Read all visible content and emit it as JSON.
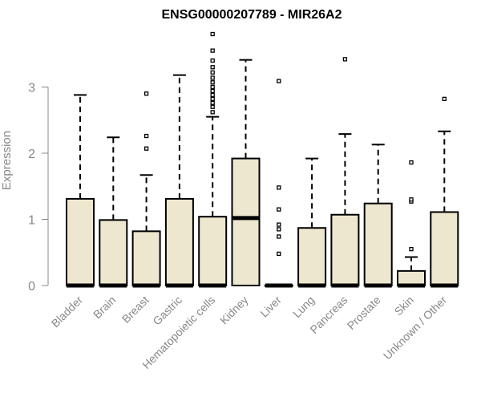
{
  "chart_data": {
    "type": "boxplot",
    "title": "ENSG00000207789 - MIR26A2",
    "ylabel": "Expression",
    "xlabel": "",
    "ylim": [
      0,
      3.9
    ],
    "yticks": [
      0,
      1,
      2,
      3
    ],
    "grid": false,
    "legend": "none",
    "colors": {
      "box_fill": "#ede7cf",
      "stroke": "#000000",
      "axis_text": "#888888"
    },
    "categories": [
      "Bladder",
      "Brain",
      "Breast",
      "Gastric",
      "Hematopoietic cells",
      "Kidney",
      "Liver",
      "Lung",
      "Pancreas",
      "Prostate",
      "Skin",
      "Unknown / Other"
    ],
    "boxes": [
      {
        "whisker_low": 0,
        "q1": 0,
        "median": 0,
        "q3": 1.31,
        "whisker_high": 2.88,
        "outliers": []
      },
      {
        "whisker_low": 0,
        "q1": 0,
        "median": 0,
        "q3": 0.99,
        "whisker_high": 2.24,
        "outliers": []
      },
      {
        "whisker_low": 0,
        "q1": 0,
        "median": 0,
        "q3": 0.82,
        "whisker_high": 1.67,
        "outliers": [
          2.07,
          2.26,
          2.9
        ]
      },
      {
        "whisker_low": 0,
        "q1": 0,
        "median": 0,
        "q3": 1.31,
        "whisker_high": 3.18,
        "outliers": []
      },
      {
        "whisker_low": 0,
        "q1": 0,
        "median": 0,
        "q3": 1.04,
        "whisker_high": 2.55,
        "outliers": [
          2.62,
          2.7,
          2.76,
          2.82,
          2.88,
          2.94,
          3.0,
          3.07,
          3.14,
          3.22,
          3.3,
          3.4,
          3.55,
          3.8
        ]
      },
      {
        "whisker_low": 0,
        "q1": 0,
        "median": 1.02,
        "q3": 1.92,
        "whisker_high": 3.41,
        "outliers": []
      },
      {
        "whisker_low": 0,
        "q1": 0,
        "median": 0,
        "q3": 0,
        "whisker_high": 0,
        "outliers": [
          0.48,
          0.74,
          0.85,
          0.92,
          1.15,
          1.48,
          3.09
        ]
      },
      {
        "whisker_low": 0,
        "q1": 0,
        "median": 0,
        "q3": 0.87,
        "whisker_high": 1.92,
        "outliers": []
      },
      {
        "whisker_low": 0,
        "q1": 0,
        "median": 0,
        "q3": 1.07,
        "whisker_high": 2.29,
        "outliers": [
          3.42
        ]
      },
      {
        "whisker_low": 0,
        "q1": 0,
        "median": 0,
        "q3": 1.24,
        "whisker_high": 2.13,
        "outliers": []
      },
      {
        "whisker_low": 0,
        "q1": 0,
        "median": 0,
        "q3": 0.22,
        "whisker_high": 0.43,
        "outliers": [
          0.55,
          1.27,
          1.3,
          1.86
        ]
      },
      {
        "whisker_low": 0,
        "q1": 0,
        "median": 0,
        "q3": 1.11,
        "whisker_high": 2.33,
        "outliers": [
          2.82
        ]
      }
    ]
  }
}
